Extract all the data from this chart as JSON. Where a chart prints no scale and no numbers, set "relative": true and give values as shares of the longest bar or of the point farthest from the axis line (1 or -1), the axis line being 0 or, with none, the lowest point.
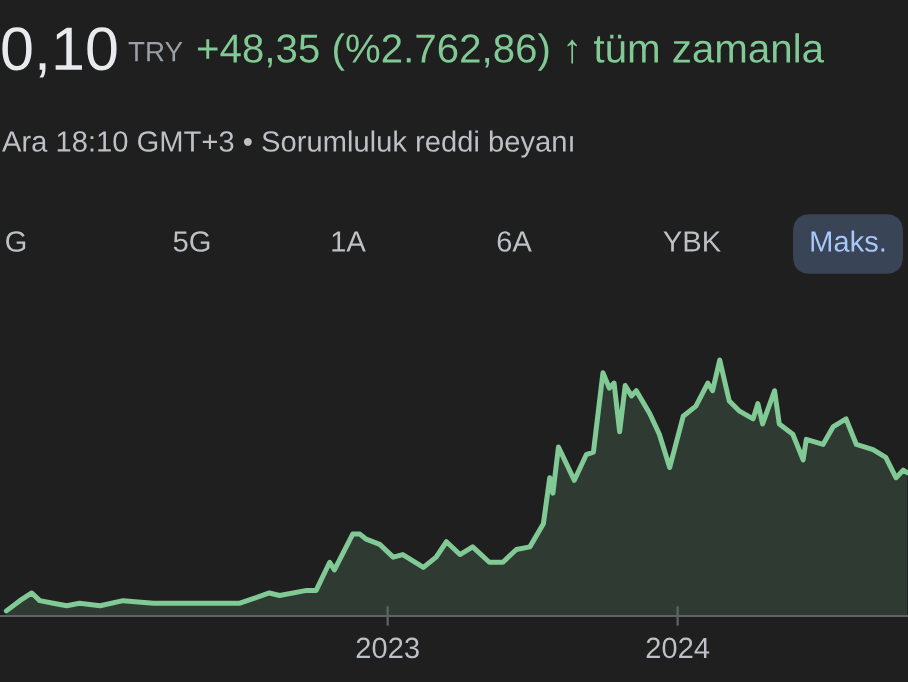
{
  "chart_data": {
    "type": "area",
    "relative": true,
    "title": "0,10",
    "subtitle": "Ara 18:10 GMT+3 • Sorumluluk reddi beyanı",
    "annotations": [
      "TRY",
      "+48,35 (%2.762,86) ↑ tüm zamanla",
      "G",
      "5G",
      "1A",
      "6A",
      "YBK",
      "Maks."
    ],
    "xlim": [
      "2021-08-31",
      "2024-10-17"
    ],
    "xticks": [
      {
        "value": "2023-01-01",
        "label": "2023"
      },
      {
        "value": "2024-01-01",
        "label": "2024"
      }
    ],
    "x": [
      "2021-09-08",
      "2021-09-25",
      "2021-10-10",
      "2021-10-20",
      "2021-11-06",
      "2021-11-23",
      "2021-12-09",
      "2022-01-04",
      "2022-02-02",
      "2022-03-12",
      "2022-03-20",
      "2022-05-09",
      "2022-06-29",
      "2022-08-05",
      "2022-08-18",
      "2022-09-21",
      "2022-10-03",
      "2022-10-20",
      "2022-10-26",
      "2022-11-18",
      "2022-11-27",
      "2022-12-05",
      "2022-12-22",
      "2023-01-08",
      "2023-01-20",
      "2023-02-15",
      "2023-03-03",
      "2023-03-16",
      "2023-04-02",
      "2023-04-18",
      "2023-05-09",
      "2023-05-26",
      "2023-06-12",
      "2023-06-29",
      "2023-07-16",
      "2023-07-24",
      "2023-07-28",
      "2023-08-04",
      "2023-08-24",
      "2023-09-08",
      "2023-09-17",
      "2023-09-29",
      "2023-10-07",
      "2023-10-13",
      "2023-10-20",
      "2023-10-27",
      "2023-11-04",
      "2023-11-10",
      "2023-11-27",
      "2023-12-09",
      "2023-12-22",
      "2024-01-08",
      "2024-01-24",
      "2024-02-08",
      "2024-02-14",
      "2024-02-23",
      "2024-03-06",
      "2024-03-19",
      "2024-04-05",
      "2024-04-11",
      "2024-04-17",
      "2024-05-02",
      "2024-05-08",
      "2024-05-25",
      "2024-06-07",
      "2024-06-11",
      "2024-07-02",
      "2024-07-15",
      "2024-07-31",
      "2024-08-13",
      "2024-09-03",
      "2024-09-19",
      "2024-10-02",
      "2024-10-11",
      "2024-10-16"
    ],
    "series": [
      {
        "color": "#81c995",
        "values": [
          0.02,
          0.06,
          0.09,
          0.06,
          0.05,
          0.04,
          0.05,
          0.04,
          0.06,
          0.05,
          0.05,
          0.05,
          0.05,
          0.09,
          0.08,
          0.1,
          0.1,
          0.21,
          0.18,
          0.32,
          0.32,
          0.3,
          0.28,
          0.23,
          0.24,
          0.19,
          0.23,
          0.29,
          0.24,
          0.27,
          0.21,
          0.21,
          0.26,
          0.27,
          0.36,
          0.54,
          0.48,
          0.66,
          0.53,
          0.63,
          0.64,
          0.95,
          0.89,
          0.91,
          0.72,
          0.9,
          0.86,
          0.88,
          0.79,
          0.71,
          0.58,
          0.78,
          0.82,
          0.91,
          0.88,
          1.0,
          0.84,
          0.8,
          0.77,
          0.83,
          0.75,
          0.88,
          0.75,
          0.71,
          0.61,
          0.69,
          0.67,
          0.74,
          0.77,
          0.67,
          0.65,
          0.62,
          0.54,
          0.57,
          0.56
        ]
      }
    ],
    "grid": false,
    "legend": false
  }
}
